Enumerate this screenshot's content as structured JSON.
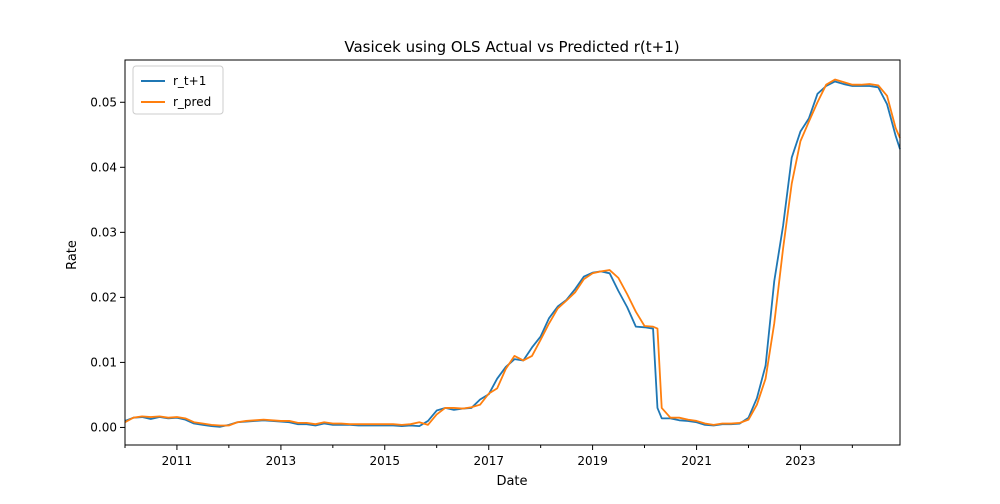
{
  "chart_data": {
    "type": "line",
    "title": "Vasicek using OLS Actual vs Predicted r(t+1)",
    "xlabel": "Date",
    "ylabel": "Rate",
    "xlim": [
      "2010-01-01",
      "2024-12-01"
    ],
    "ylim": [
      -0.0027,
      0.0565
    ],
    "x_ticks": [
      "2011",
      "2013",
      "2015",
      "2017",
      "2019",
      "2021",
      "2023"
    ],
    "y_ticks": [
      "0.00",
      "0.01",
      "0.02",
      "0.03",
      "0.04",
      "0.05"
    ],
    "grid": false,
    "legend_position": "top-left",
    "series": [
      {
        "name": "r_t+1",
        "color": "#1f77b4",
        "points": [
          [
            "2010-01-01",
            0.001
          ],
          [
            "2010-03-01",
            0.0015
          ],
          [
            "2010-05-01",
            0.0016
          ],
          [
            "2010-07-01",
            0.0013
          ],
          [
            "2010-09-01",
            0.0016
          ],
          [
            "2010-11-01",
            0.0014
          ],
          [
            "2011-01-01",
            0.0015
          ],
          [
            "2011-03-01",
            0.0012
          ],
          [
            "2011-05-01",
            0.0006
          ],
          [
            "2011-07-01",
            0.0004
          ],
          [
            "2011-09-01",
            0.0002
          ],
          [
            "2011-11-01",
            0.0001
          ],
          [
            "2012-01-01",
            0.0004
          ],
          [
            "2012-03-01",
            0.0008
          ],
          [
            "2012-05-01",
            0.0009
          ],
          [
            "2012-07-01",
            0.001
          ],
          [
            "2012-09-01",
            0.0011
          ],
          [
            "2012-11-01",
            0.001
          ],
          [
            "2013-01-01",
            0.0009
          ],
          [
            "2013-03-01",
            0.0008
          ],
          [
            "2013-05-01",
            0.0005
          ],
          [
            "2013-07-01",
            0.0005
          ],
          [
            "2013-09-01",
            0.0003
          ],
          [
            "2013-11-01",
            0.0006
          ],
          [
            "2014-01-01",
            0.0004
          ],
          [
            "2014-03-01",
            0.0004
          ],
          [
            "2014-05-01",
            0.0004
          ],
          [
            "2014-07-01",
            0.0003
          ],
          [
            "2014-09-01",
            0.0003
          ],
          [
            "2014-11-01",
            0.0003
          ],
          [
            "2015-01-01",
            0.0003
          ],
          [
            "2015-03-01",
            0.0003
          ],
          [
            "2015-05-01",
            0.0002
          ],
          [
            "2015-07-01",
            0.0003
          ],
          [
            "2015-09-01",
            0.0002
          ],
          [
            "2015-11-01",
            0.001
          ],
          [
            "2016-01-01",
            0.0026
          ],
          [
            "2016-03-01",
            0.003
          ],
          [
            "2016-05-01",
            0.0027
          ],
          [
            "2016-07-01",
            0.0029
          ],
          [
            "2016-09-01",
            0.003
          ],
          [
            "2016-11-01",
            0.0043
          ],
          [
            "2017-01-01",
            0.0051
          ],
          [
            "2017-03-01",
            0.0075
          ],
          [
            "2017-05-01",
            0.0093
          ],
          [
            "2017-07-01",
            0.0105
          ],
          [
            "2017-09-01",
            0.0103
          ],
          [
            "2017-11-01",
            0.0123
          ],
          [
            "2018-01-01",
            0.014
          ],
          [
            "2018-03-01",
            0.0168
          ],
          [
            "2018-05-01",
            0.0186
          ],
          [
            "2018-07-01",
            0.0196
          ],
          [
            "2018-09-01",
            0.0213
          ],
          [
            "2018-11-01",
            0.0232
          ],
          [
            "2019-01-01",
            0.0238
          ],
          [
            "2019-03-01",
            0.024
          ],
          [
            "2019-05-01",
            0.0237
          ],
          [
            "2019-07-01",
            0.021
          ],
          [
            "2019-09-01",
            0.0185
          ],
          [
            "2019-11-01",
            0.0155
          ],
          [
            "2020-01-01",
            0.0154
          ],
          [
            "2020-03-01",
            0.0152
          ],
          [
            "2020-04-01",
            0.003
          ],
          [
            "2020-05-01",
            0.0014
          ],
          [
            "2020-07-01",
            0.0014
          ],
          [
            "2020-09-01",
            0.0011
          ],
          [
            "2020-11-01",
            0.001
          ],
          [
            "2021-01-01",
            0.0008
          ],
          [
            "2021-03-01",
            0.0004
          ],
          [
            "2021-05-01",
            0.0003
          ],
          [
            "2021-07-01",
            0.0005
          ],
          [
            "2021-09-01",
            0.0005
          ],
          [
            "2021-11-01",
            0.0006
          ],
          [
            "2022-01-01",
            0.0015
          ],
          [
            "2022-03-01",
            0.0045
          ],
          [
            "2022-05-01",
            0.0095
          ],
          [
            "2022-07-01",
            0.0225
          ],
          [
            "2022-09-01",
            0.031
          ],
          [
            "2022-11-01",
            0.0415
          ],
          [
            "2023-01-01",
            0.0455
          ],
          [
            "2023-03-01",
            0.0475
          ],
          [
            "2023-05-01",
            0.0513
          ],
          [
            "2023-07-01",
            0.0525
          ],
          [
            "2023-09-01",
            0.0532
          ],
          [
            "2023-11-01",
            0.0528
          ],
          [
            "2024-01-01",
            0.0525
          ],
          [
            "2024-03-01",
            0.0525
          ],
          [
            "2024-05-01",
            0.0525
          ],
          [
            "2024-07-01",
            0.0523
          ],
          [
            "2024-09-01",
            0.0497
          ],
          [
            "2024-11-01",
            0.0448
          ],
          [
            "2024-12-01",
            0.0428
          ]
        ]
      },
      {
        "name": "r_pred",
        "color": "#ff7f0e",
        "points": [
          [
            "2010-01-01",
            0.0008
          ],
          [
            "2010-03-01",
            0.0015
          ],
          [
            "2010-05-01",
            0.0017
          ],
          [
            "2010-07-01",
            0.0016
          ],
          [
            "2010-09-01",
            0.0017
          ],
          [
            "2010-11-01",
            0.0015
          ],
          [
            "2011-01-01",
            0.0016
          ],
          [
            "2011-03-01",
            0.0014
          ],
          [
            "2011-05-01",
            0.0008
          ],
          [
            "2011-07-01",
            0.0006
          ],
          [
            "2011-09-01",
            0.0004
          ],
          [
            "2011-11-01",
            0.0003
          ],
          [
            "2012-01-01",
            0.0003
          ],
          [
            "2012-03-01",
            0.0008
          ],
          [
            "2012-05-01",
            0.001
          ],
          [
            "2012-07-01",
            0.0011
          ],
          [
            "2012-09-01",
            0.0012
          ],
          [
            "2012-11-01",
            0.0011
          ],
          [
            "2013-01-01",
            0.001
          ],
          [
            "2013-03-01",
            0.001
          ],
          [
            "2013-05-01",
            0.0007
          ],
          [
            "2013-07-01",
            0.0007
          ],
          [
            "2013-09-01",
            0.0005
          ],
          [
            "2013-11-01",
            0.0008
          ],
          [
            "2014-01-01",
            0.0006
          ],
          [
            "2014-03-01",
            0.0006
          ],
          [
            "2014-05-01",
            0.0005
          ],
          [
            "2014-07-01",
            0.0005
          ],
          [
            "2014-09-01",
            0.0005
          ],
          [
            "2014-11-01",
            0.0005
          ],
          [
            "2015-01-01",
            0.0005
          ],
          [
            "2015-03-01",
            0.0005
          ],
          [
            "2015-05-01",
            0.0004
          ],
          [
            "2015-07-01",
            0.0005
          ],
          [
            "2015-09-01",
            0.0008
          ],
          [
            "2015-11-01",
            0.0004
          ],
          [
            "2016-01-01",
            0.002
          ],
          [
            "2016-03-01",
            0.003
          ],
          [
            "2016-05-01",
            0.003
          ],
          [
            "2016-07-01",
            0.0029
          ],
          [
            "2016-09-01",
            0.0031
          ],
          [
            "2016-11-01",
            0.0035
          ],
          [
            "2017-01-01",
            0.0052
          ],
          [
            "2017-03-01",
            0.006
          ],
          [
            "2017-05-01",
            0.009
          ],
          [
            "2017-07-01",
            0.011
          ],
          [
            "2017-09-01",
            0.0103
          ],
          [
            "2017-11-01",
            0.011
          ],
          [
            "2018-01-01",
            0.0135
          ],
          [
            "2018-03-01",
            0.016
          ],
          [
            "2018-05-01",
            0.0183
          ],
          [
            "2018-07-01",
            0.0195
          ],
          [
            "2018-09-01",
            0.0208
          ],
          [
            "2018-11-01",
            0.0228
          ],
          [
            "2019-01-01",
            0.0237
          ],
          [
            "2019-03-01",
            0.024
          ],
          [
            "2019-05-01",
            0.0242
          ],
          [
            "2019-07-01",
            0.023
          ],
          [
            "2019-09-01",
            0.0205
          ],
          [
            "2019-11-01",
            0.0178
          ],
          [
            "2020-01-01",
            0.0156
          ],
          [
            "2020-03-01",
            0.0155
          ],
          [
            "2020-04-01",
            0.0152
          ],
          [
            "2020-05-01",
            0.003
          ],
          [
            "2020-07-01",
            0.0015
          ],
          [
            "2020-09-01",
            0.0015
          ],
          [
            "2020-11-01",
            0.0012
          ],
          [
            "2021-01-01",
            0.001
          ],
          [
            "2021-03-01",
            0.0006
          ],
          [
            "2021-05-01",
            0.0004
          ],
          [
            "2021-07-01",
            0.0006
          ],
          [
            "2021-09-01",
            0.0006
          ],
          [
            "2021-11-01",
            0.0007
          ],
          [
            "2022-01-01",
            0.0012
          ],
          [
            "2022-03-01",
            0.0035
          ],
          [
            "2022-05-01",
            0.0075
          ],
          [
            "2022-07-01",
            0.016
          ],
          [
            "2022-09-01",
            0.0275
          ],
          [
            "2022-11-01",
            0.0375
          ],
          [
            "2023-01-01",
            0.044
          ],
          [
            "2023-03-01",
            0.047
          ],
          [
            "2023-05-01",
            0.05
          ],
          [
            "2023-07-01",
            0.0527
          ],
          [
            "2023-09-01",
            0.0535
          ],
          [
            "2023-11-01",
            0.0531
          ],
          [
            "2024-01-01",
            0.0527
          ],
          [
            "2024-03-01",
            0.0527
          ],
          [
            "2024-05-01",
            0.0528
          ],
          [
            "2024-07-01",
            0.0526
          ],
          [
            "2024-09-01",
            0.051
          ],
          [
            "2024-11-01",
            0.046
          ],
          [
            "2024-12-01",
            0.0445
          ]
        ]
      }
    ]
  }
}
